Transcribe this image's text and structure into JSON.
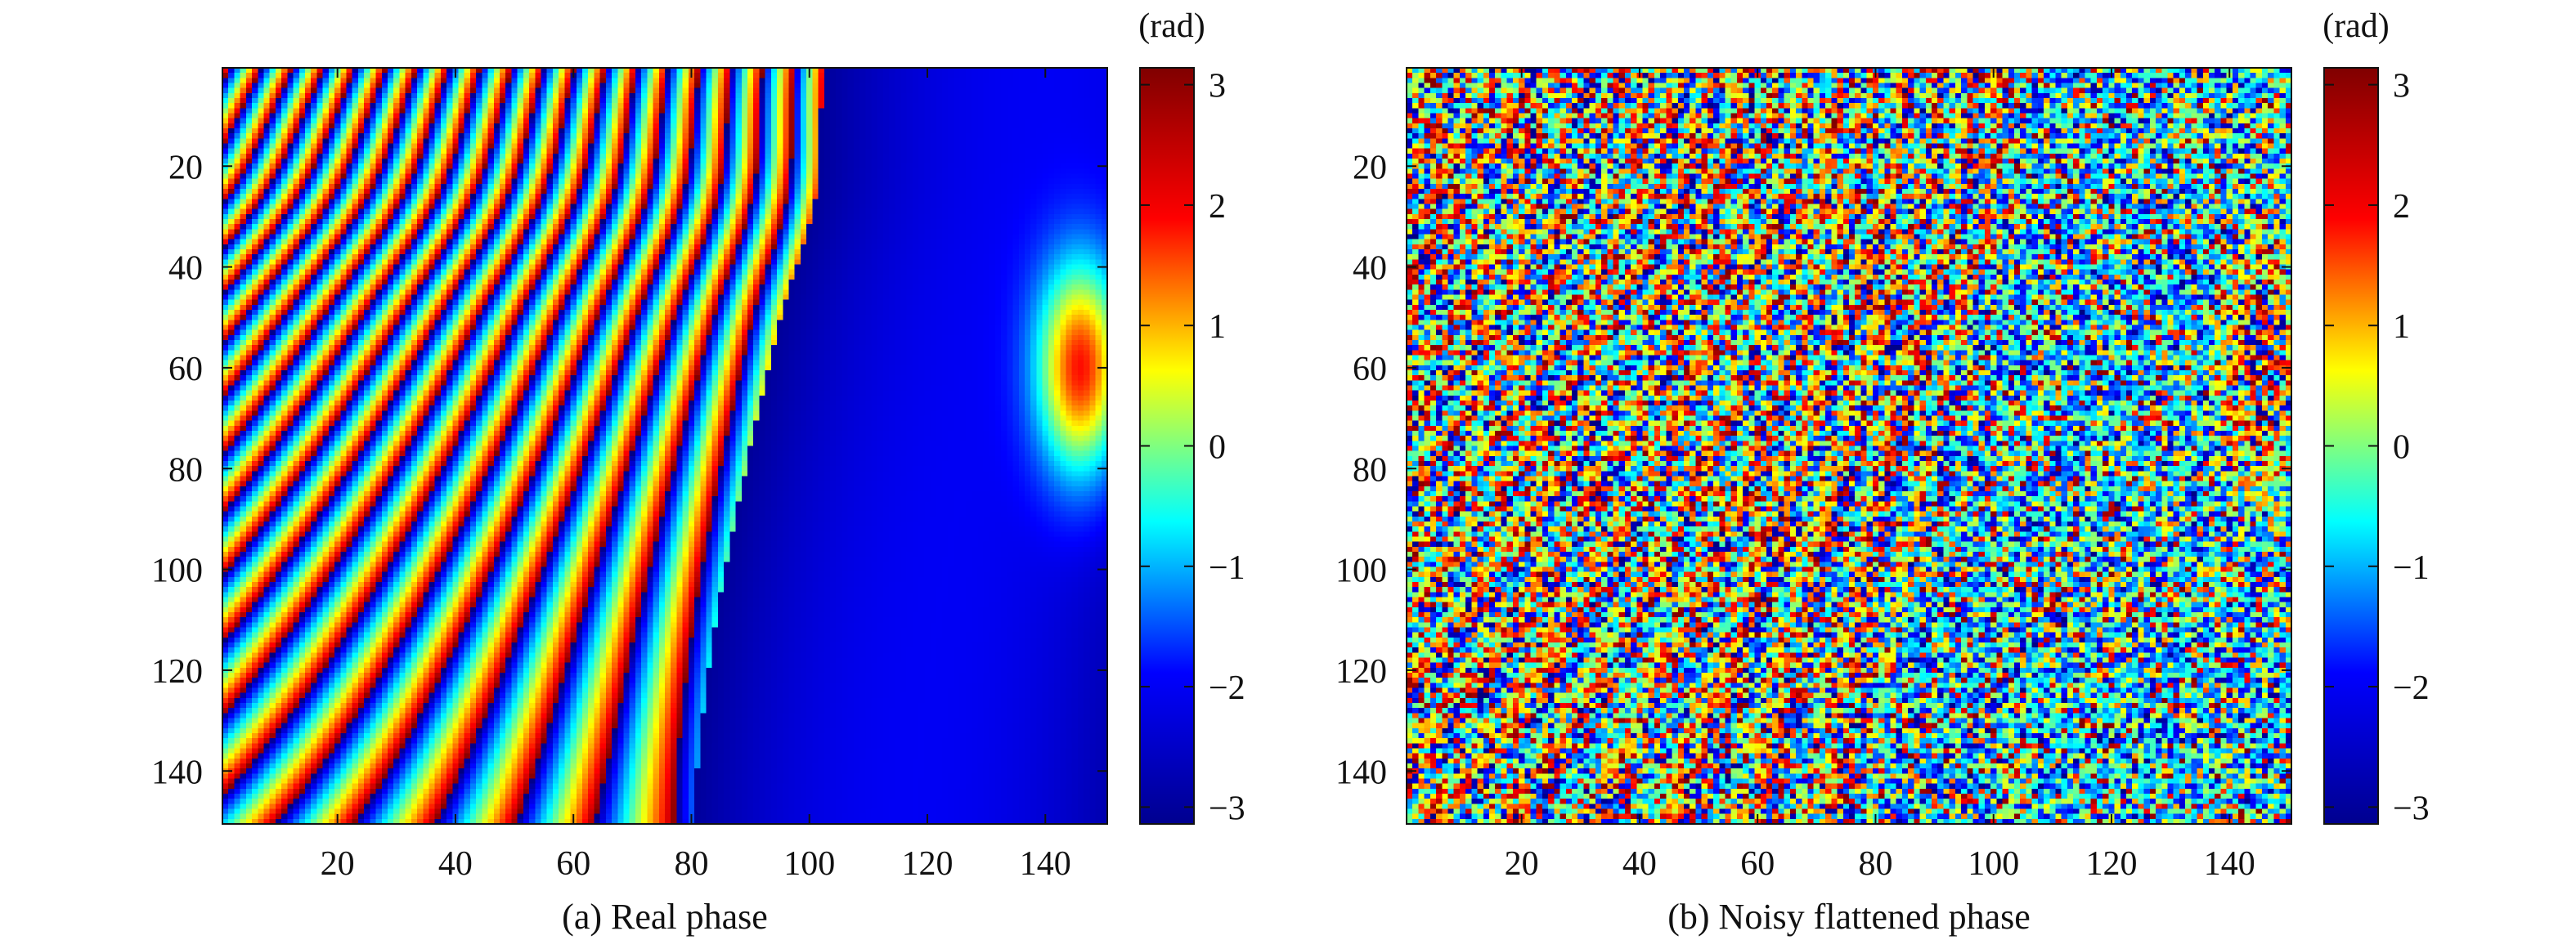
{
  "chart_data": [
    {
      "type": "heatmap",
      "caption": "(a) Real phase",
      "x_ticks": [
        20,
        40,
        60,
        80,
        100,
        120,
        140
      ],
      "y_ticks": [
        20,
        40,
        60,
        80,
        100,
        120,
        140
      ],
      "xlim": [
        1,
        150
      ],
      "ylim": [
        1,
        150
      ],
      "y_direction": "reversed",
      "grid": false,
      "colorbar": {
        "unit": "(rad)",
        "ticks": [
          3,
          2,
          1,
          0,
          -1,
          -2,
          -3
        ],
        "tick_labels": [
          "3",
          "2",
          "1",
          "0",
          "−1",
          "−2",
          "−3"
        ],
        "range": [
          -3.14,
          3.14
        ],
        "colormap": "jet"
      },
      "noise": 0
    },
    {
      "type": "heatmap",
      "caption": "(b) Noisy flattened phase",
      "x_ticks": [
        20,
        40,
        60,
        80,
        100,
        120,
        140
      ],
      "y_ticks": [
        20,
        40,
        60,
        80,
        100,
        120,
        140
      ],
      "xlim": [
        1,
        150
      ],
      "ylim": [
        1,
        150
      ],
      "y_direction": "reversed",
      "grid": false,
      "colorbar": {
        "unit": "(rad)",
        "ticks": [
          3,
          2,
          1,
          0,
          -1,
          -2,
          -3
        ],
        "tick_labels": [
          "3",
          "2",
          "1",
          "0",
          "−1",
          "−2",
          "−3"
        ],
        "range": [
          -3.14,
          3.14
        ],
        "colormap": "jet"
      },
      "noise": 1
    }
  ],
  "colormap_stops": [
    "#00008f",
    "#0000ff",
    "#00ffff",
    "#ffff00",
    "#ff0000",
    "#800000"
  ]
}
